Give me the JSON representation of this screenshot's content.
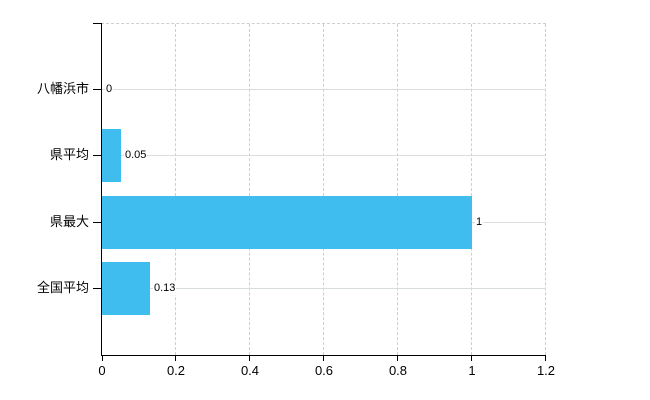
{
  "chart_data": {
    "type": "bar",
    "orientation": "horizontal",
    "title": "",
    "xlabel": "",
    "ylabel": "",
    "categories": [
      "八幡浜市",
      "県平均",
      "県最大",
      "全国平均"
    ],
    "values": [
      0,
      0.05,
      1,
      0.13
    ],
    "value_labels": [
      "0",
      "0.05",
      "1",
      "0.13"
    ],
    "x_ticks": [
      0,
      0.2,
      0.4,
      0.6,
      0.8,
      1,
      1.2
    ],
    "x_tick_labels": [
      "0",
      "0.2",
      "0.4",
      "0.6",
      "0.8",
      "1",
      "1.2"
    ],
    "xlim": [
      0,
      1.2
    ],
    "grid": true,
    "legend": "none",
    "colors": {
      "bar": "#3fbdee",
      "axis": "#000000",
      "horizontal_gridline": "#d8ded8",
      "vertical_gridline": "#d2cbd2",
      "text": "#000000",
      "background": "#ffffff"
    }
  }
}
